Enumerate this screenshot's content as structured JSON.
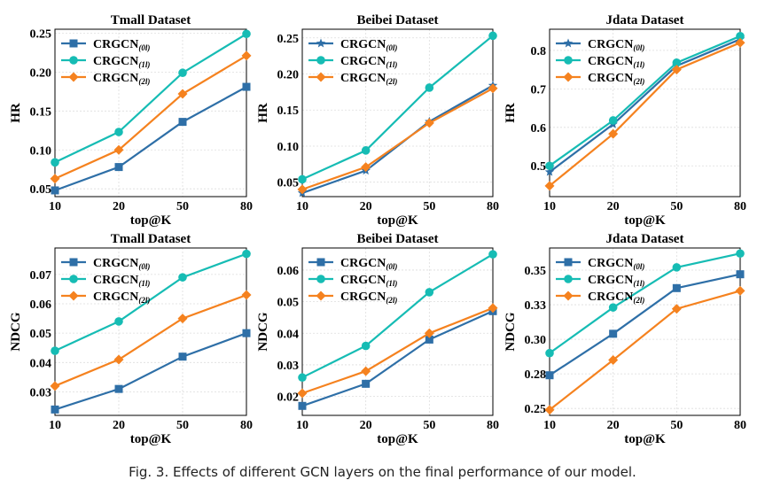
{
  "caption": "Fig. 3.  Effects of different GCN layers on the final performance of our model.",
  "colors": {
    "0": "#2E6FA7",
    "1": "#16BCB4",
    "2": "#F5821F"
  },
  "chart_data": [
    {
      "type": "line",
      "title": "Tmall Dataset",
      "xlabel": "top@K",
      "ylabel": "HR",
      "categories": [
        "10",
        "20",
        "50",
        "80"
      ],
      "ylim": [
        0.04,
        0.255
      ],
      "yticks": [
        {
          "v": 0.05,
          "label": "0.05"
        },
        {
          "v": 0.1,
          "label": "0.10"
        },
        {
          "v": 0.15,
          "label": "0.15"
        },
        {
          "v": 0.2,
          "label": "0.20"
        },
        {
          "v": 0.25,
          "label": "0.25"
        }
      ],
      "series": [
        {
          "name": "CRGCN",
          "sub": "(0l)",
          "marker": "square",
          "values": [
            0.048,
            0.078,
            0.136,
            0.181
          ]
        },
        {
          "name": "CRGCN",
          "sub": "(1l)",
          "marker": "circle",
          "values": [
            0.084,
            0.123,
            0.199,
            0.249
          ]
        },
        {
          "name": "CRGCN",
          "sub": "(2l)",
          "marker": "diamond",
          "values": [
            0.063,
            0.1,
            0.172,
            0.221
          ]
        }
      ]
    },
    {
      "type": "line",
      "title": "Beibei Dataset",
      "xlabel": "top@K",
      "ylabel": "HR",
      "categories": [
        "10",
        "20",
        "50",
        "80"
      ],
      "ylim": [
        0.03,
        0.262
      ],
      "yticks": [
        {
          "v": 0.05,
          "label": "0.05"
        },
        {
          "v": 0.1,
          "label": "0.10"
        },
        {
          "v": 0.15,
          "label": "0.15"
        },
        {
          "v": 0.2,
          "label": "0.20"
        },
        {
          "v": 0.25,
          "label": "0.25"
        }
      ],
      "series": [
        {
          "name": "CRGCN",
          "sub": "(0l)",
          "marker": "star",
          "values": [
            0.035,
            0.066,
            0.134,
            0.184
          ]
        },
        {
          "name": "CRGCN",
          "sub": "(1l)",
          "marker": "circle",
          "values": [
            0.054,
            0.094,
            0.181,
            0.253
          ]
        },
        {
          "name": "CRGCN",
          "sub": "(2l)",
          "marker": "diamond",
          "values": [
            0.04,
            0.071,
            0.132,
            0.18
          ]
        }
      ]
    },
    {
      "type": "line",
      "title": "Jdata Dataset",
      "xlabel": "top@K",
      "ylabel": "HR",
      "categories": [
        "10",
        "20",
        "50",
        "80"
      ],
      "ylim": [
        0.42,
        0.855
      ],
      "yticks": [
        {
          "v": 0.5,
          "label": "0.5"
        },
        {
          "v": 0.6,
          "label": "0.6"
        },
        {
          "v": 0.7,
          "label": "0.7"
        },
        {
          "v": 0.8,
          "label": "0.8"
        }
      ],
      "series": [
        {
          "name": "CRGCN",
          "sub": "(0l)",
          "marker": "star",
          "values": [
            0.484,
            0.608,
            0.76,
            0.829
          ]
        },
        {
          "name": "CRGCN",
          "sub": "(1l)",
          "marker": "circle",
          "values": [
            0.5,
            0.618,
            0.768,
            0.837
          ]
        },
        {
          "name": "CRGCN",
          "sub": "(2l)",
          "marker": "diamond",
          "values": [
            0.448,
            0.583,
            0.75,
            0.82
          ]
        }
      ]
    },
    {
      "type": "line",
      "title": "Tmall Dataset",
      "xlabel": "top@K",
      "ylabel": "NDCG",
      "categories": [
        "10",
        "20",
        "50",
        "80"
      ],
      "ylim": [
        0.022,
        0.079
      ],
      "yticks": [
        {
          "v": 0.03,
          "label": "0.03"
        },
        {
          "v": 0.04,
          "label": "0.04"
        },
        {
          "v": 0.05,
          "label": "0.05"
        },
        {
          "v": 0.06,
          "label": "0.06"
        },
        {
          "v": 0.07,
          "label": "0.07"
        }
      ],
      "series": [
        {
          "name": "CRGCN",
          "sub": "(0l)",
          "marker": "square",
          "values": [
            0.024,
            0.031,
            0.042,
            0.05
          ]
        },
        {
          "name": "CRGCN",
          "sub": "(1l)",
          "marker": "circle",
          "values": [
            0.044,
            0.054,
            0.069,
            0.077
          ]
        },
        {
          "name": "CRGCN",
          "sub": "(2l)",
          "marker": "diamond",
          "values": [
            0.032,
            0.041,
            0.055,
            0.063
          ]
        }
      ]
    },
    {
      "type": "line",
      "title": "Beibei Dataset",
      "xlabel": "top@K",
      "ylabel": "NDCG",
      "categories": [
        "10",
        "20",
        "50",
        "80"
      ],
      "ylim": [
        0.014,
        0.067
      ],
      "yticks": [
        {
          "v": 0.02,
          "label": "0.02"
        },
        {
          "v": 0.03,
          "label": "0.03"
        },
        {
          "v": 0.04,
          "label": "0.04"
        },
        {
          "v": 0.05,
          "label": "0.05"
        },
        {
          "v": 0.06,
          "label": "0.06"
        }
      ],
      "series": [
        {
          "name": "CRGCN",
          "sub": "(0l)",
          "marker": "square",
          "values": [
            0.017,
            0.024,
            0.038,
            0.047
          ]
        },
        {
          "name": "CRGCN",
          "sub": "(1l)",
          "marker": "circle",
          "values": [
            0.026,
            0.036,
            0.053,
            0.065
          ]
        },
        {
          "name": "CRGCN",
          "sub": "(2l)",
          "marker": "diamond",
          "values": [
            0.021,
            0.028,
            0.04,
            0.048
          ]
        }
      ]
    },
    {
      "type": "line",
      "title": "Jdata Dataset",
      "xlabel": "top@K",
      "ylabel": "NDCG",
      "categories": [
        "10",
        "20",
        "50",
        "80"
      ],
      "ylim": [
        0.245,
        0.366
      ],
      "yticks": [
        {
          "v": 0.25,
          "label": "0.25"
        },
        {
          "v": 0.275,
          "label": "0.28"
        },
        {
          "v": 0.3,
          "label": "0.30"
        },
        {
          "v": 0.325,
          "label": "0.33"
        },
        {
          "v": 0.35,
          "label": "0.35"
        }
      ],
      "series": [
        {
          "name": "CRGCN",
          "sub": "(0l)",
          "marker": "square",
          "values": [
            0.274,
            0.304,
            0.337,
            0.347
          ]
        },
        {
          "name": "CRGCN",
          "sub": "(1l)",
          "marker": "circle",
          "values": [
            0.29,
            0.323,
            0.352,
            0.362
          ]
        },
        {
          "name": "CRGCN",
          "sub": "(2l)",
          "marker": "diamond",
          "values": [
            0.249,
            0.285,
            0.322,
            0.335
          ]
        }
      ]
    }
  ]
}
